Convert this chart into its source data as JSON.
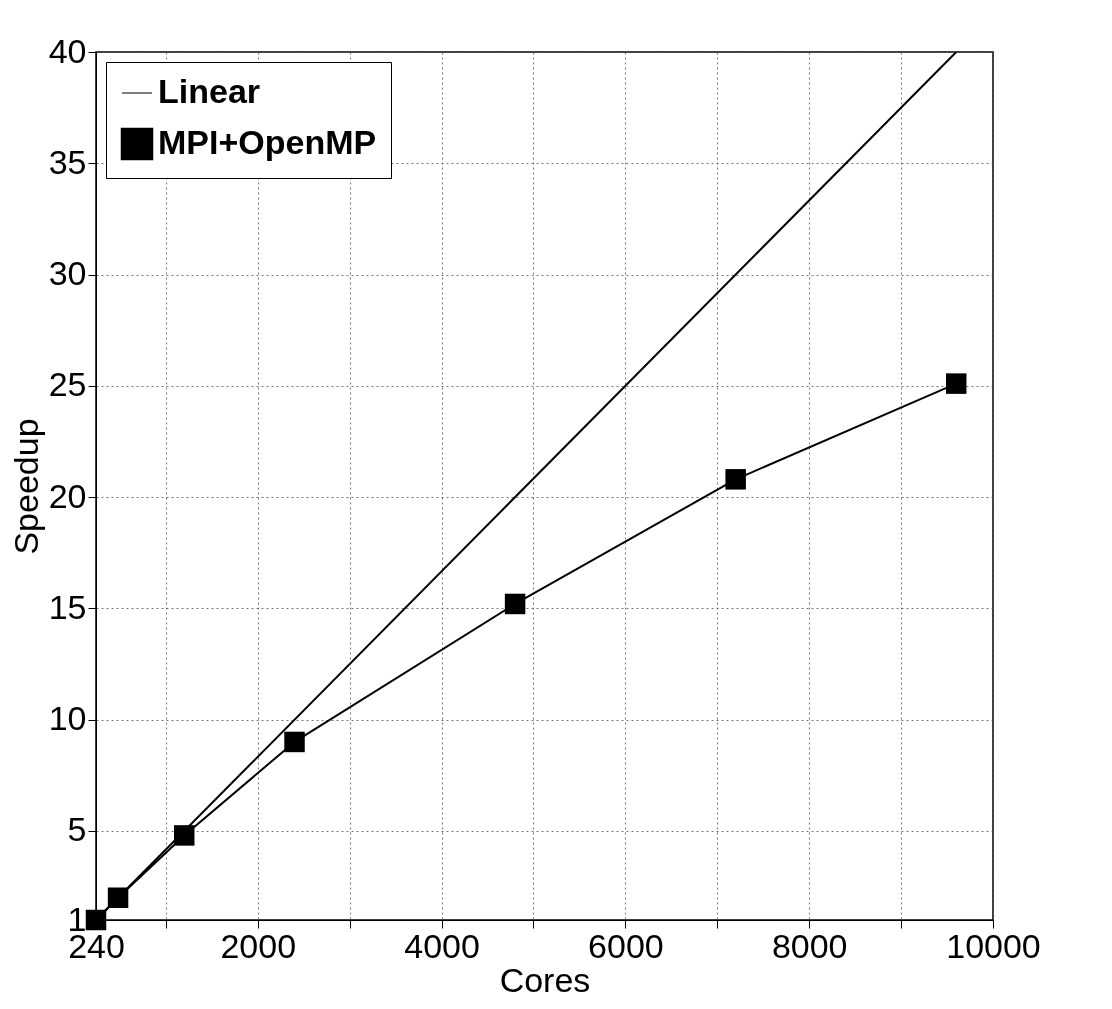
{
  "chart_data": {
    "type": "line",
    "xlabel": "Cores",
    "ylabel": "Speedup",
    "xlim": [
      240,
      10000
    ],
    "xticks": [
      240,
      {
        "value": 1000,
        "label": null
      },
      2000,
      {
        "value": 3000,
        "label": null
      },
      4000,
      {
        "value": 5000,
        "label": null
      },
      6000,
      {
        "value": 7000,
        "label": null
      },
      8000,
      {
        "value": 9000,
        "label": null
      },
      10000
    ],
    "ylim": [
      1,
      40
    ],
    "yticks": [
      1,
      5,
      10,
      15,
      20,
      25,
      30,
      35,
      40
    ],
    "grid": true,
    "legend": "top left",
    "series": [
      {
        "name": "Linear",
        "color": "#000000",
        "x": [
          240,
          9600
        ],
        "values": [
          1,
          40
        ]
      },
      {
        "name": "MPI+OpenMP",
        "color": "#000000",
        "marker": "square",
        "x": [
          240,
          480,
          1200,
          2400,
          4800,
          7200,
          9600
        ],
        "values": [
          1,
          2.0,
          4.8,
          9.0,
          15.2,
          20.8,
          25.1
        ]
      }
    ]
  }
}
